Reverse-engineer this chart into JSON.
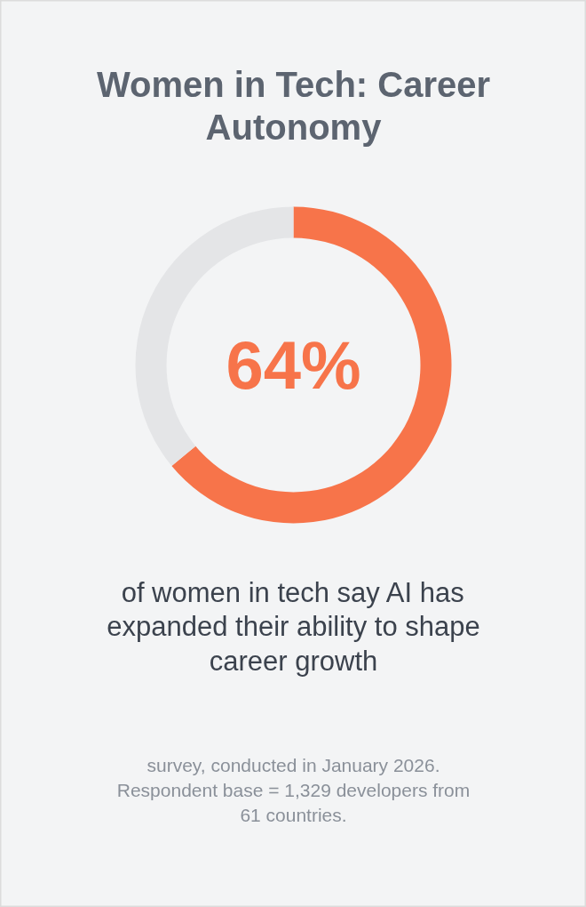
{
  "chart_data": {
    "type": "donut",
    "title": "Women in Tech: Career Autonomy",
    "subtitle": "of women in tech say AI has expanded their ability to shape career growth",
    "categories": [
      null,
      null
    ],
    "values": [
      64,
      36
    ],
    "colors": [
      "#f7744a",
      "#e4e5e7"
    ],
    "value_labels": [
      "64%",
      null
    ],
    "annotations": [
      "survey, conducted in January 2026. Respondent base = 1,329 developers from 61 countries."
    ]
  }
}
